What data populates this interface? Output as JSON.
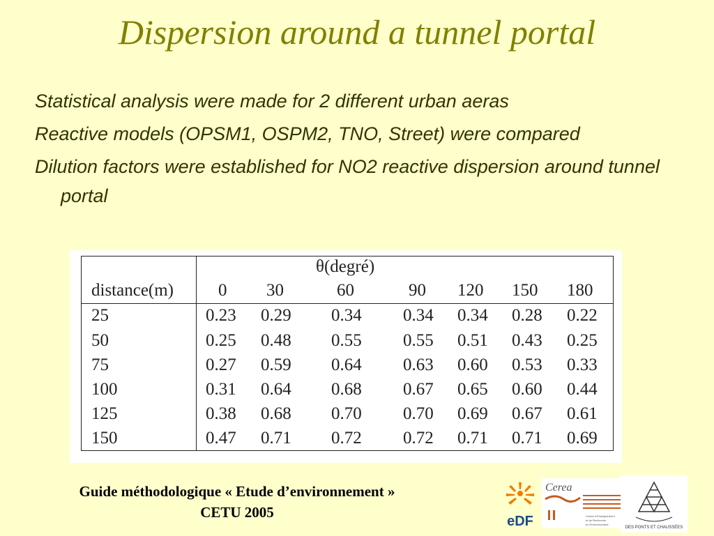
{
  "title": "Dispersion around a tunnel portal",
  "bullets": [
    "Statistical analysis were made for 2 different urban aeras",
    "Reactive models (OPSM1, OSPM2, TNO, Street) were compared",
    "Dilution factors were established for NO2 reactive dispersion around tunnel portal"
  ],
  "table": {
    "header_theta": "θ(degré)",
    "row_header": "distance(m)",
    "angles": [
      "0",
      "30",
      "60",
      "90",
      "120",
      "150",
      "180"
    ],
    "rows": [
      {
        "distance": "25",
        "values": [
          "0.23",
          "0.29",
          "0.34",
          "0.34",
          "0.34",
          "0.28",
          "0.22"
        ]
      },
      {
        "distance": "50",
        "values": [
          "0.25",
          "0.48",
          "0.55",
          "0.55",
          "0.51",
          "0.43",
          "0.25"
        ]
      },
      {
        "distance": "75",
        "values": [
          "0.27",
          "0.59",
          "0.64",
          "0.63",
          "0.60",
          "0.53",
          "0.33"
        ]
      },
      {
        "distance": "100",
        "values": [
          "0.31",
          "0.64",
          "0.68",
          "0.67",
          "0.65",
          "0.60",
          "0.44"
        ]
      },
      {
        "distance": "125",
        "values": [
          "0.38",
          "0.68",
          "0.70",
          "0.70",
          "0.69",
          "0.67",
          "0.61"
        ]
      },
      {
        "distance": "150",
        "values": [
          "0.47",
          "0.71",
          "0.72",
          "0.72",
          "0.71",
          "0.71",
          "0.69"
        ]
      }
    ]
  },
  "footer": {
    "line1": "Guide méthodologique « Etude d’environnement »",
    "line2": "CETU 2005"
  },
  "logos": {
    "edf": "eDF",
    "cerea": "Cerea",
    "cerea_sub": "Centre d'Enseignement et de Recherche en Environnement Atmosphérique",
    "ponts": "DES PONTS ET CHAUSSÉES"
  },
  "colors": {
    "background": "#ffffcc",
    "title": "#808000",
    "text": "#333300",
    "edf_orange": "#f07c00",
    "edf_blue": "#1a4a8a"
  }
}
